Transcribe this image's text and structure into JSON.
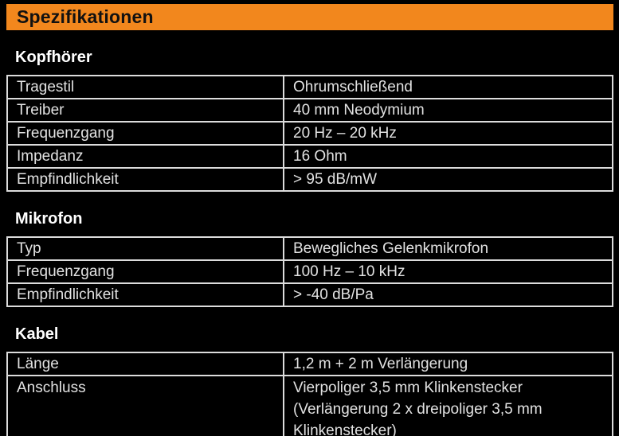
{
  "page": {
    "title": "Spezifikationen"
  },
  "theme": {
    "accent_orange": "#F2871D",
    "background": "#000000",
    "table_border": "#DCDCDC",
    "cell_text": "#E2E2E2",
    "heading_text": "#FFFFFF",
    "title_text": "#111111"
  },
  "sections": [
    {
      "heading": "Kopfhörer",
      "rows": [
        {
          "label": "Tragestil",
          "value": "Ohrumschließend"
        },
        {
          "label": "Treiber",
          "value": "40 mm Neodymium"
        },
        {
          "label": "Frequenzgang",
          "value": "20 Hz – 20 kHz"
        },
        {
          "label": "Impedanz",
          "value": "16 Ohm"
        },
        {
          "label": "Empfindlichkeit",
          "value": "> 95 dB/mW"
        }
      ]
    },
    {
      "heading": "Mikrofon",
      "rows": [
        {
          "label": "Typ",
          "value": "Bewegliches Gelenkmikrofon"
        },
        {
          "label": "Frequenzgang",
          "value": "100 Hz – 10 kHz"
        },
        {
          "label": "Empfindlichkeit",
          "value": "> -40 dB/Pa"
        }
      ]
    },
    {
      "heading": "Kabel",
      "rows": [
        {
          "label": "Länge",
          "value": "1,2 m + 2 m Verlängerung"
        },
        {
          "label": "Anschluss",
          "value": "Vierpoliger 3,5 mm Klinkenstecker (Verlängerung 2 x dreipoliger 3,5 mm Klinkenstecker)"
        }
      ]
    }
  ]
}
